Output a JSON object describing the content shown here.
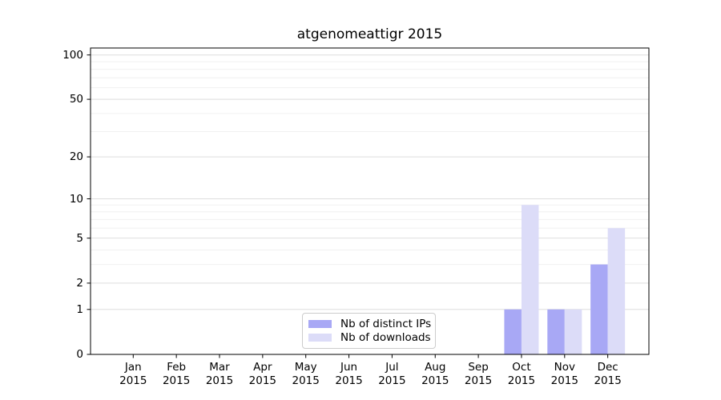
{
  "chart_data": {
    "type": "bar",
    "title": "atgenomeattigr 2015",
    "categories": [
      "Jan",
      "Feb",
      "Mar",
      "Apr",
      "May",
      "Jun",
      "Jul",
      "Aug",
      "Sep",
      "Oct",
      "Nov",
      "Dec"
    ],
    "year_label": "2015",
    "series": [
      {
        "name": "Nb of distinct IPs",
        "color": "#a8a8f5",
        "values": [
          0,
          0,
          0,
          0,
          0,
          0,
          0,
          0,
          0,
          1,
          1,
          3
        ]
      },
      {
        "name": "Nb of downloads",
        "color": "#dcdcf8",
        "values": [
          0,
          0,
          0,
          0,
          0,
          0,
          0,
          0,
          0,
          9,
          1,
          6
        ]
      }
    ],
    "yscale": "log1p",
    "y_ticks": [
      0,
      1,
      2,
      5,
      10,
      20,
      50,
      100
    ],
    "y_minor_gridlines": [
      3,
      4,
      6,
      7,
      8,
      9,
      30,
      40,
      60,
      70,
      80,
      90
    ],
    "ylim": [
      0,
      112
    ],
    "xlabel": "",
    "ylabel": "",
    "grid": true,
    "legend_position": "inside-bottom-center",
    "colors": {
      "major_grid": "#dedede",
      "minor_grid": "#f0f0f0",
      "spine": "#000000",
      "background": "#ffffff"
    }
  }
}
